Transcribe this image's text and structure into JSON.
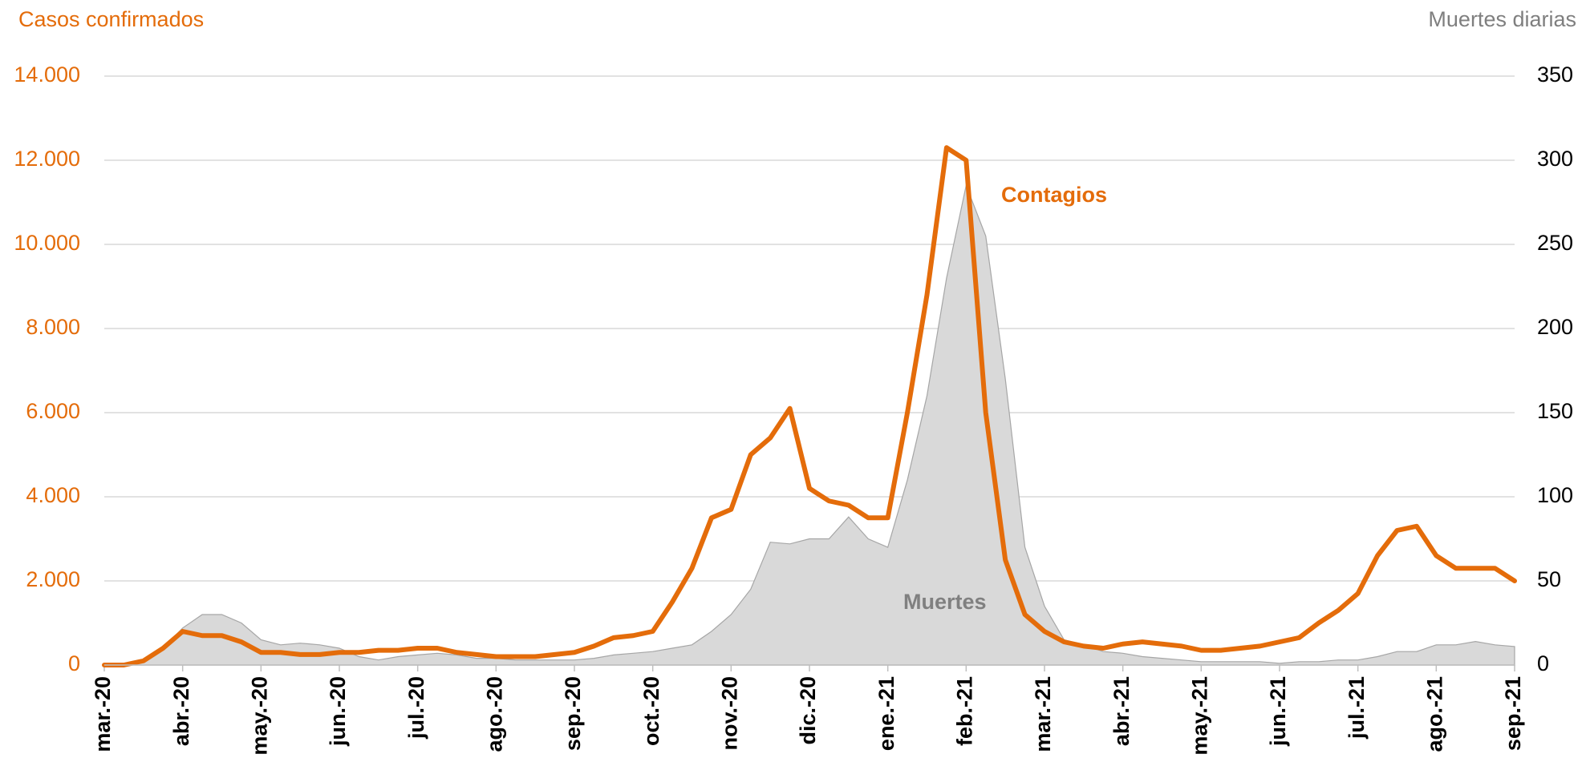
{
  "chart_data": {
    "type": "line-area",
    "y_label": "Casos confirmados",
    "y2_label": "Muertes diarias",
    "categories": [
      "mar.-20",
      null,
      null,
      null,
      "abr.-20",
      null,
      null,
      null,
      "may.-20",
      null,
      null,
      null,
      "jun.-20",
      null,
      null,
      null,
      "jul.-20",
      null,
      null,
      null,
      "ago.-20",
      null,
      null,
      null,
      "sep.-20",
      null,
      null,
      null,
      "oct.-20",
      null,
      null,
      null,
      "nov.-20",
      null,
      null,
      null,
      "dic.-20",
      null,
      null,
      null,
      "ene.-21",
      null,
      null,
      null,
      "feb.-21",
      null,
      null,
      null,
      "mar.-21",
      null,
      null,
      null,
      "abr.-21",
      null,
      null,
      null,
      "may.-21",
      null,
      null,
      null,
      "jun.-21",
      null,
      null,
      null,
      "jul.-21",
      null,
      null,
      null,
      "ago.-21",
      null,
      null,
      null,
      "sep.-21"
    ],
    "series": [
      {
        "name": "Muertes",
        "color": "#d9d9d9",
        "axis": "y2",
        "values": [
          0,
          0,
          2,
          10,
          22,
          30,
          30,
          25,
          15,
          12,
          13,
          12,
          10,
          5,
          3,
          5,
          6,
          7,
          6,
          4,
          4,
          3,
          3,
          3,
          3,
          4,
          6,
          7,
          8,
          10,
          12,
          20,
          30,
          45,
          73,
          72,
          75,
          75,
          88,
          75,
          70,
          110,
          160,
          230,
          285,
          255,
          170,
          70,
          35,
          15,
          12,
          8,
          7,
          5,
          4,
          3,
          2,
          2,
          2,
          2,
          1,
          2,
          2,
          3,
          3,
          5,
          8,
          8,
          12,
          12,
          14,
          12,
          11
        ]
      },
      {
        "name": "Contagios",
        "color": "#e46c0a",
        "values": [
          0,
          0,
          100,
          400,
          800,
          700,
          700,
          550,
          300,
          300,
          250,
          250,
          300,
          300,
          350,
          350,
          400,
          400,
          300,
          250,
          200,
          200,
          200,
          250,
          300,
          450,
          650,
          700,
          800,
          1500,
          2300,
          3500,
          3700,
          5000,
          5400,
          6100,
          4200,
          3900,
          3800,
          3500,
          3500,
          6000,
          8800,
          12300,
          12000,
          6000,
          2500,
          1200,
          800,
          550,
          450,
          400,
          500,
          550,
          500,
          450,
          350,
          350,
          400,
          450,
          550,
          650,
          1000,
          1300,
          1700,
          2600,
          3200,
          3300,
          2600,
          2300,
          2300,
          2300,
          2000
        ]
      }
    ],
    "ylim": [
      0,
      14000
    ],
    "yticks": [
      0,
      {
        "value": 2000,
        "label": "2.000"
      },
      {
        "value": 4000,
        "label": "4.000"
      },
      {
        "value": 6000,
        "label": "6.000"
      },
      {
        "value": 8000,
        "label": "8.000"
      },
      {
        "value": 10000,
        "label": "10.000"
      },
      {
        "value": 12000,
        "label": "12.000"
      },
      {
        "value": 14000,
        "label": "14.000"
      }
    ],
    "y2lim": [
      0,
      350
    ],
    "y2ticks": [
      0,
      50,
      100,
      150,
      200,
      250,
      300,
      350
    ],
    "grid": true
  }
}
